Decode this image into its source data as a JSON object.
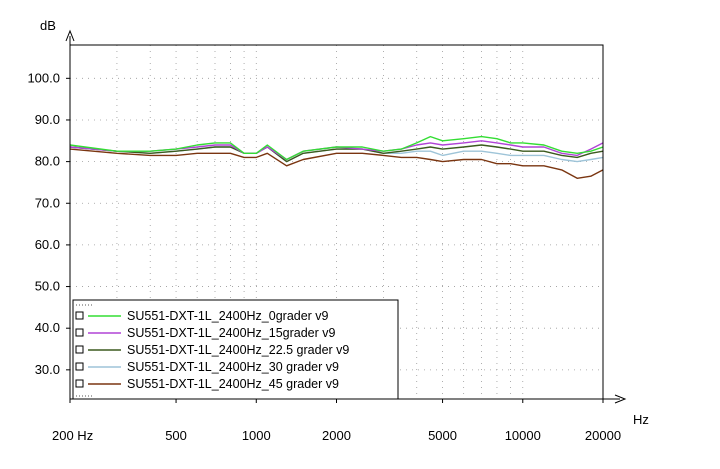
{
  "chart_data": {
    "type": "line",
    "title": "",
    "xlabel": "",
    "ylabel": "",
    "x_unit": "Hz",
    "y_unit": "dB",
    "x_scale": "log",
    "xlim": [
      200,
      20000
    ],
    "ylim": [
      23,
      108
    ],
    "grid": "dotted",
    "legend_position": "bottom-left",
    "y_ticks": [
      "100.0",
      "90.0",
      "80.0",
      "70.0",
      "60.0",
      "50.0",
      "40.0",
      "30.0"
    ],
    "y_tick_values": [
      100,
      90,
      80,
      70,
      60,
      50,
      40,
      30
    ],
    "x_ticks": [
      "200 Hz",
      "500",
      "1000",
      "2000",
      "5000",
      "10000",
      "20000"
    ],
    "x_tick_values": [
      200,
      500,
      1000,
      2000,
      5000,
      10000,
      20000
    ],
    "x": [
      200,
      300,
      400,
      500,
      600,
      700,
      800,
      900,
      1000,
      1100,
      1300,
      1500,
      2000,
      2500,
      3000,
      3500,
      4000,
      4500,
      5000,
      6000,
      7000,
      8000,
      9000,
      10000,
      12000,
      14000,
      16000,
      18000,
      20000
    ],
    "series": [
      {
        "name": "SU551-DXT-1L_2400Hz_0grader v9",
        "color": "#33dd33",
        "values": [
          84,
          82.5,
          82.5,
          83,
          84,
          84.5,
          84.5,
          82,
          82,
          84,
          80.5,
          82.5,
          83.5,
          83.5,
          82.5,
          83,
          84.5,
          86,
          85,
          85.5,
          86,
          85.5,
          84.5,
          84.5,
          84,
          82.5,
          82,
          82.5,
          83.5
        ]
      },
      {
        "name": "SU551-DXT-1L_2400Hz_15grader v9",
        "color": "#b044d6",
        "values": [
          83.5,
          82.5,
          82.5,
          83,
          83.5,
          84,
          84,
          82,
          82,
          83.5,
          80.5,
          82.5,
          83.5,
          83,
          82.5,
          83,
          84,
          84.5,
          84,
          84.5,
          85,
          84.5,
          84,
          83.5,
          83.5,
          82,
          81.5,
          83,
          84.5
        ]
      },
      {
        "name": "SU551-DXT-1L_2400Hz_22.5 grader v9",
        "color": "#3b5a1e",
        "values": [
          83.5,
          82.5,
          82,
          82.5,
          83,
          83.5,
          83.5,
          82,
          82,
          83.5,
          80,
          82,
          83,
          83,
          82,
          82.5,
          83,
          83.5,
          83,
          83.5,
          84,
          83.5,
          83,
          82.5,
          82.5,
          81.5,
          81,
          82,
          82.5
        ]
      },
      {
        "name": "SU551-DXT-1L_2400Hz_30 grader v9",
        "color": "#9ec4d8",
        "values": [
          83.5,
          82.5,
          82,
          82.5,
          83,
          83.5,
          83.5,
          82,
          82,
          83.5,
          80,
          82,
          83,
          83,
          82,
          82,
          82.5,
          82.5,
          81.5,
          82.5,
          82.5,
          82,
          81.5,
          81.5,
          81.5,
          80.5,
          80,
          80.5,
          81
        ]
      },
      {
        "name": "SU551-DXT-1L_2400Hz_45 grader v9",
        "color": "#7a3510",
        "values": [
          83,
          82,
          81.5,
          81.5,
          82,
          82,
          82,
          81,
          81,
          82,
          79,
          80.5,
          82,
          82,
          81.5,
          81,
          81,
          80.5,
          80,
          80.5,
          80.5,
          79.5,
          79.5,
          79,
          79,
          78,
          76,
          76.5,
          78
        ]
      }
    ]
  }
}
